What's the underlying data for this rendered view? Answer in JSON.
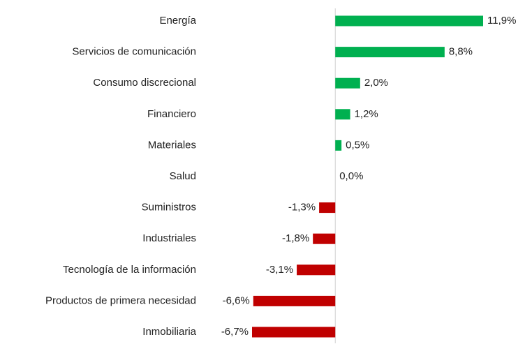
{
  "chart_data": {
    "type": "hbar",
    "categories": [
      "Energía",
      "Servicios de comunicación",
      "Consumo discrecional",
      "Financiero",
      "Materiales",
      "Salud",
      "Suministros",
      "Industriales",
      "Tecnología de la información",
      "Productos de primera necesidad",
      "Inmobiliaria"
    ],
    "values": [
      11.9,
      8.8,
      2.0,
      1.2,
      0.5,
      0.0,
      -1.3,
      -1.8,
      -3.1,
      -6.6,
      -6.7
    ],
    "value_labels": [
      "11,9%",
      "8,8%",
      "2,0%",
      "1,2%",
      "0,5%",
      "0,0%",
      "-1,3%",
      "-1,8%",
      "-3,1%",
      "-6,6%",
      "-6,7%"
    ],
    "colors": [
      "#00b050",
      "#00b050",
      "#00b050",
      "#00b050",
      "#00b050",
      "#00b050",
      "#c00000",
      "#c00000",
      "#c00000",
      "#c00000",
      "#c00000"
    ]
  }
}
